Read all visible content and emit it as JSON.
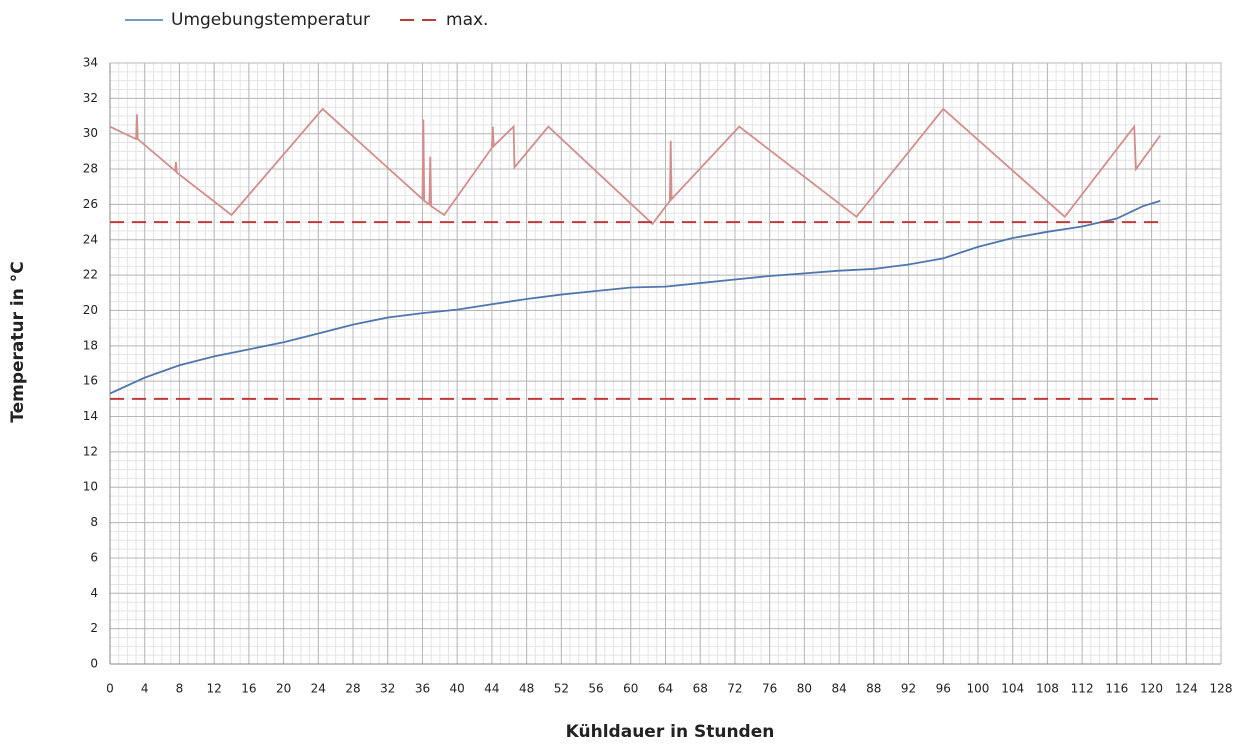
{
  "chart_data": {
    "type": "line",
    "xlabel": "Kühldauer in Stunden",
    "ylabel": "Temperatur in °C",
    "xlim": [
      0,
      128
    ],
    "xticks": [
      0,
      4,
      8,
      12,
      16,
      20,
      24,
      28,
      32,
      36,
      40,
      44,
      48,
      52,
      56,
      60,
      64,
      68,
      72,
      76,
      80,
      84,
      88,
      92,
      96,
      100,
      104,
      108,
      112,
      116,
      120,
      124,
      128
    ],
    "ylim": [
      0,
      34
    ],
    "yticks": [
      0,
      2,
      4,
      6,
      8,
      10,
      12,
      14,
      16,
      18,
      20,
      22,
      24,
      26,
      28,
      30,
      32,
      34
    ],
    "grid": true,
    "xminor": 1,
    "yminor": 0.5,
    "series": [
      {
        "color": "#d38e8c",
        "x": [
          0,
          3,
          3.1,
          3.2,
          7.5,
          7.6,
          7.7,
          14,
          24.5,
          36,
          36.1,
          36.2,
          36.8,
          36.9,
          37,
          38.5,
          44,
          44.1,
          44.2,
          46.5,
          46.6,
          50.5,
          62.5,
          64.5,
          64.6,
          64.7,
          72.5,
          86,
          96,
          110,
          118,
          118.2,
          121
        ],
        "values": [
          30.4,
          29.7,
          31.1,
          29.7,
          27.9,
          28.4,
          27.8,
          25.4,
          31.4,
          26.3,
          30.8,
          26.2,
          26,
          28.7,
          25.9,
          25.4,
          29.2,
          30.4,
          29.3,
          30.4,
          28.1,
          30.4,
          24.9,
          26.2,
          29.6,
          26.3,
          30.4,
          25.3,
          31.4,
          25.3,
          30.4,
          28,
          29.9
        ]
      },
      {
        "name": "Umgebungstemperatur",
        "color": "#4f76ae",
        "x": [
          0,
          4,
          8,
          12,
          16,
          20,
          24,
          28,
          32,
          36,
          40,
          44,
          48,
          52,
          56,
          60,
          64,
          68,
          72,
          76,
          80,
          84,
          88,
          92,
          96,
          100,
          104,
          108,
          112,
          116,
          119,
          121
        ],
        "values": [
          15.3,
          16.2,
          16.9,
          17.4,
          17.8,
          18.2,
          18.7,
          19.2,
          19.6,
          19.85,
          20.05,
          20.35,
          20.65,
          20.9,
          21.1,
          21.3,
          21.35,
          21.55,
          21.75,
          21.95,
          22.1,
          22.25,
          22.35,
          22.6,
          22.95,
          23.6,
          24.1,
          24.45,
          24.75,
          25.2,
          25.9,
          26.2
        ]
      },
      {
        "name": "max.",
        "color": "#c0393b",
        "dashed": true,
        "x": [
          0,
          121
        ],
        "values": [
          25,
          25
        ]
      },
      {
        "color": "#c0393b",
        "dashed": true,
        "x": [
          0,
          121
        ],
        "values": [
          15,
          15
        ]
      }
    ]
  }
}
